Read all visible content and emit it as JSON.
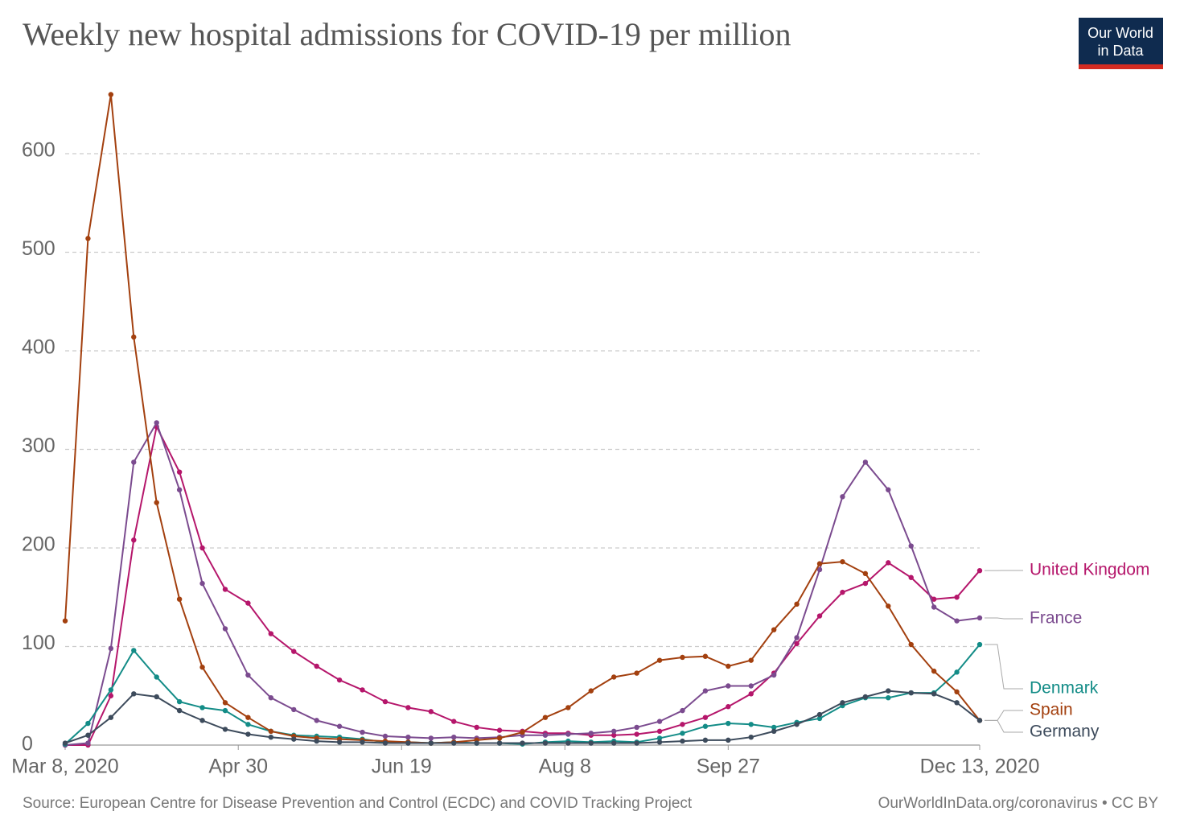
{
  "chart_data": {
    "type": "line",
    "title": "Weekly new hospital admissions for COVID-19 per million",
    "logo": [
      "Our World",
      "in Data"
    ],
    "source": "Source: European Centre for Disease Prevention and Control (ECDC) and COVID Tracking Project",
    "credit": "OurWorldInData.org/coronavirus • CC BY",
    "x": [
      "2020-03-08",
      "2020-03-15",
      "2020-03-22",
      "2020-03-29",
      "2020-04-05",
      "2020-04-12",
      "2020-04-19",
      "2020-04-26",
      "2020-05-03",
      "2020-05-10",
      "2020-05-17",
      "2020-05-24",
      "2020-05-31",
      "2020-06-07",
      "2020-06-14",
      "2020-06-21",
      "2020-06-28",
      "2020-07-05",
      "2020-07-12",
      "2020-07-19",
      "2020-07-26",
      "2020-08-02",
      "2020-08-09",
      "2020-08-16",
      "2020-08-23",
      "2020-08-30",
      "2020-09-06",
      "2020-09-13",
      "2020-09-20",
      "2020-09-27",
      "2020-10-04",
      "2020-10-11",
      "2020-10-18",
      "2020-10-25",
      "2020-11-01",
      "2020-11-08",
      "2020-11-15",
      "2020-11-22",
      "2020-11-29",
      "2020-12-06",
      "2020-12-13"
    ],
    "xlim": [
      "2020-03-08",
      "2020-12-13"
    ],
    "xticks": [
      {
        "value": "2020-03-08",
        "label": "Mar 8, 2020"
      },
      {
        "value": "2020-04-30",
        "label": "Apr 30"
      },
      {
        "value": "2020-06-19",
        "label": "Jun 19"
      },
      {
        "value": "2020-08-08",
        "label": "Aug 8"
      },
      {
        "value": "2020-09-27",
        "label": "Sep 27"
      },
      {
        "value": "2020-12-13",
        "label": "Dec 13, 2020"
      }
    ],
    "ylim": [
      0,
      660
    ],
    "yticks": [
      0,
      100,
      200,
      300,
      400,
      500,
      600
    ],
    "grid": true,
    "series": [
      {
        "name": "United Kingdom",
        "color": "#b5166b",
        "values": [
          0,
          0,
          50,
          208,
          323,
          277,
          200,
          158,
          144,
          113,
          95,
          80,
          66,
          56,
          44,
          38,
          34,
          24,
          18,
          15,
          14,
          12,
          12,
          10,
          10,
          11,
          14,
          21,
          28,
          39,
          52,
          73,
          103,
          131,
          155,
          164,
          185,
          170,
          148,
          150,
          177
        ]
      },
      {
        "name": "France",
        "color": "#7b4b8f",
        "values": [
          0,
          2,
          98,
          287,
          327,
          259,
          164,
          118,
          71,
          48,
          36,
          25,
          19,
          13,
          9,
          8,
          7,
          8,
          7,
          8,
          10,
          10,
          11,
          12,
          14,
          18,
          24,
          35,
          55,
          60,
          60,
          71,
          109,
          178,
          252,
          287,
          259,
          202,
          140,
          126,
          129
        ]
      },
      {
        "name": "Denmark",
        "color": "#138c87",
        "values": [
          1,
          22,
          56,
          96,
          69,
          44,
          38,
          35,
          21,
          14,
          10,
          9,
          8,
          6,
          3,
          3,
          2,
          3,
          2,
          2,
          1,
          3,
          4,
          3,
          4,
          3,
          7,
          12,
          19,
          22,
          21,
          18,
          23,
          27,
          40,
          48,
          48,
          53,
          53,
          74,
          102
        ]
      },
      {
        "name": "Spain",
        "color": "#a3400f",
        "values": [
          126,
          514,
          660,
          414,
          246,
          148,
          79,
          43,
          28,
          14,
          9,
          7,
          6,
          5,
          4,
          3,
          2,
          3,
          5,
          7,
          13,
          28,
          38,
          55,
          69,
          73,
          86,
          89,
          90,
          80,
          86,
          117,
          143,
          184,
          186,
          174,
          141,
          102,
          75,
          54,
          25
        ]
      },
      {
        "name": "Germany",
        "color": "#3d4b5c",
        "values": [
          2,
          10,
          28,
          52,
          49,
          35,
          25,
          16,
          11,
          8,
          6,
          4,
          3,
          3,
          2,
          2,
          2,
          2,
          2,
          2,
          2,
          2,
          2,
          2,
          2,
          2,
          3,
          4,
          5,
          5,
          8,
          14,
          21,
          31,
          43,
          49,
          55,
          53,
          52,
          43,
          25
        ]
      }
    ]
  }
}
